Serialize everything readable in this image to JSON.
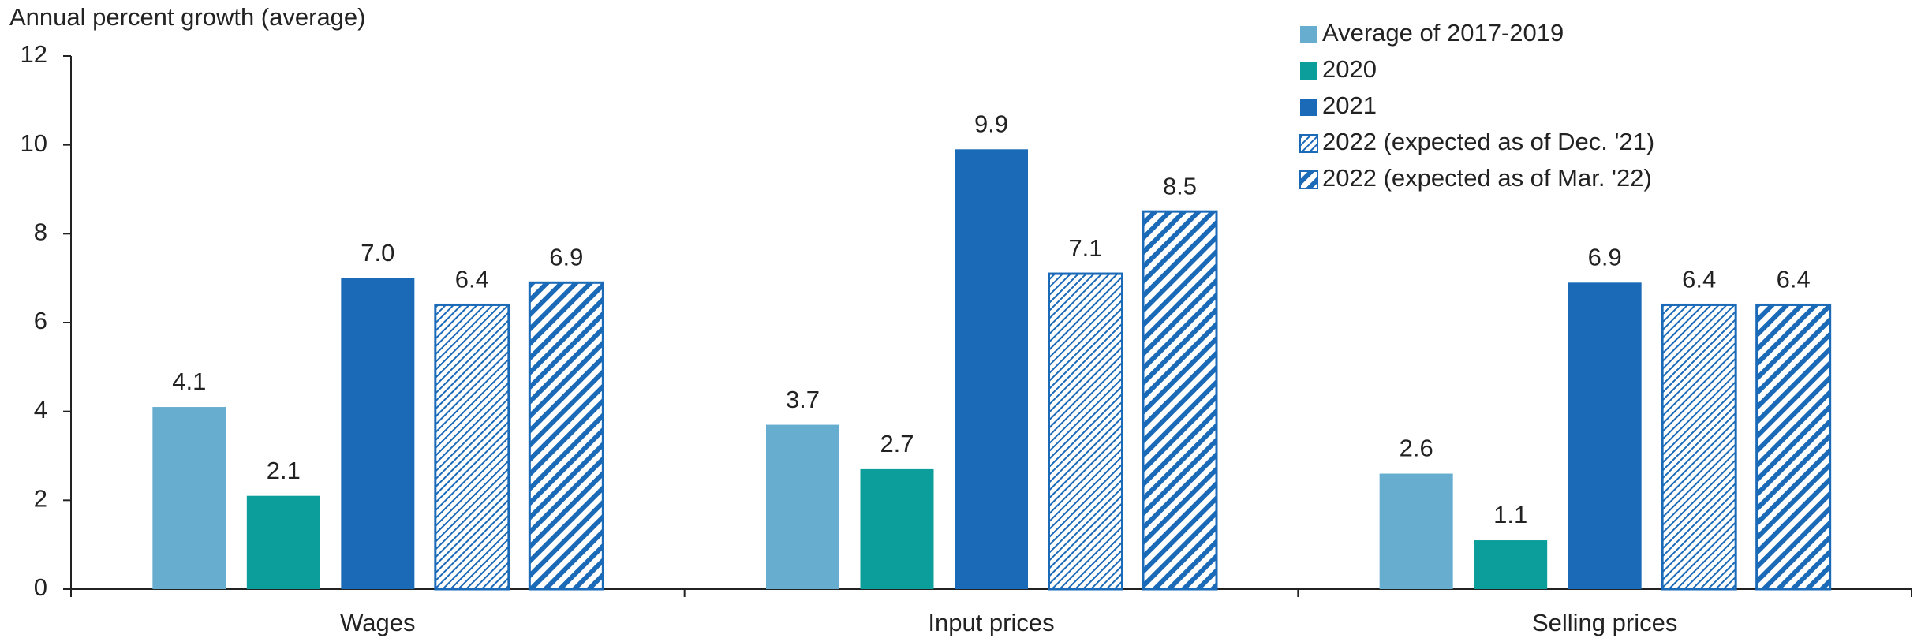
{
  "chart_data": {
    "type": "bar",
    "y_axis_label": "Annual percent growth (average)",
    "categories": [
      "Wages",
      "Input prices",
      "Selling prices"
    ],
    "series": [
      {
        "name": "Average of 2017-2019",
        "color": "#67adcf",
        "hatch": "none",
        "values": [
          4.1,
          3.7,
          2.6
        ],
        "value_labels": [
          "4.1",
          "3.7",
          "2.6"
        ]
      },
      {
        "name": "2020",
        "color": "#0c9e9b",
        "hatch": "none",
        "values": [
          2.1,
          2.7,
          1.1
        ],
        "value_labels": [
          "2.1",
          "2.7",
          "1.1"
        ]
      },
      {
        "name": "2021",
        "color": "#1a6ab8",
        "hatch": "none",
        "values": [
          7.0,
          9.9,
          6.9
        ],
        "value_labels": [
          "7.0",
          "9.9",
          "6.9"
        ]
      },
      {
        "name": "2022 (expected as of Dec. '21)",
        "color": "#1a6ab8",
        "hatch": "thin",
        "values": [
          6.4,
          7.1,
          6.4
        ],
        "value_labels": [
          "6.4",
          "7.1",
          "6.4"
        ]
      },
      {
        "name": "2022 (expected as of Mar. '22)",
        "color": "#1a6ab8",
        "hatch": "thick",
        "values": [
          6.9,
          8.5,
          6.4
        ],
        "value_labels": [
          "6.9",
          "8.5",
          "6.4"
        ]
      }
    ],
    "ylim": [
      0,
      12
    ],
    "yticks": [
      0,
      2,
      4,
      6,
      8,
      10,
      12
    ],
    "grid": false,
    "legend": "top-right"
  }
}
